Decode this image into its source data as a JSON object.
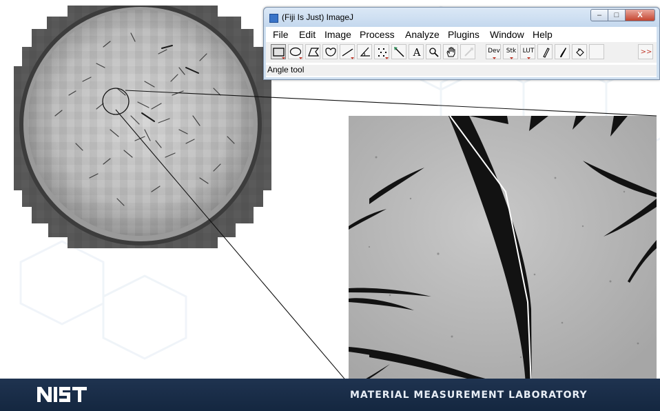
{
  "window": {
    "title": "(Fiji Is Just) ImageJ",
    "minimize_label": "–",
    "maximize_label": "□",
    "close_label": "X"
  },
  "menu": [
    "File",
    "Edit",
    "Image",
    "Process",
    "Analyze",
    "Plugins",
    "Window",
    "Help"
  ],
  "tools": {
    "items": [
      {
        "name": "rectangle-tool-icon",
        "selected": true
      },
      {
        "name": "oval-tool-icon"
      },
      {
        "name": "polygon-tool-icon"
      },
      {
        "name": "freehand-tool-icon"
      },
      {
        "name": "line-tool-icon"
      },
      {
        "name": "angle-tool-icon"
      },
      {
        "name": "multipoint-tool-icon"
      },
      {
        "name": "wand-tool-icon"
      },
      {
        "name": "text-tool-icon",
        "label": "A"
      },
      {
        "name": "magnifier-tool-icon"
      },
      {
        "name": "hand-tool-icon"
      },
      {
        "name": "color-picker-tool-icon"
      },
      {
        "name": "dev-menu-icon",
        "label": "Dev"
      },
      {
        "name": "stk-menu-icon",
        "label": "Stk"
      },
      {
        "name": "lut-menu-icon",
        "label": "LUT"
      },
      {
        "name": "pencil-tool-icon"
      },
      {
        "name": "brush-tool-icon"
      },
      {
        "name": "flood-fill-tool-icon"
      },
      {
        "name": "blank-tool-icon"
      },
      {
        "name": "more-tools-icon",
        "label": ">>"
      }
    ]
  },
  "status": {
    "text": "Angle tool"
  },
  "footer": {
    "logo": "NIST",
    "lab_name": "MATERIAL MEASUREMENT LABORATORY"
  },
  "colors": {
    "footer_bg": "#1a2d48",
    "titlebar": "#cfe0f1",
    "accent_red": "#c0392b"
  }
}
